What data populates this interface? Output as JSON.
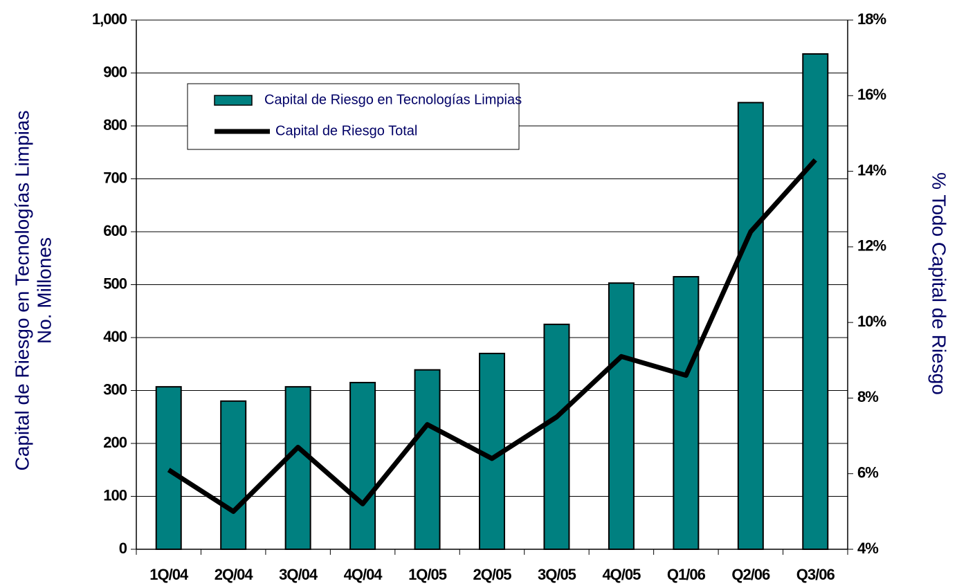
{
  "chart_data": {
    "type": "bar",
    "categories": [
      "1Q/04",
      "2Q/04",
      "3Q/04",
      "4Q/04",
      "1Q/05",
      "2Q/05",
      "3Q/05",
      "4Q/05",
      "Q1/06",
      "Q2/06",
      "Q3/06"
    ],
    "series": [
      {
        "name": "Capital de Riesgo en Tecnologías Limpias",
        "type": "bar",
        "color": "#008080",
        "values": [
          307,
          280,
          307,
          315,
          339,
          370,
          425,
          503,
          515,
          844,
          936
        ]
      },
      {
        "name": "Capital de Riesgo Total",
        "type": "line",
        "axis": "y2",
        "color": "#000000",
        "values": [
          6.1,
          5.0,
          6.7,
          5.2,
          7.3,
          6.4,
          7.5,
          9.1,
          8.6,
          12.4,
          14.3
        ]
      }
    ],
    "ylabel": [
      "Capital de Riesgo en Tecnologías Limpias",
      "No. Millones"
    ],
    "y2label": "% Todo Capital de Riesgo",
    "ylim": [
      0,
      1000
    ],
    "yticks": [
      0,
      100,
      200,
      300,
      400,
      500,
      600,
      700,
      800,
      900,
      {
        "value": 1000,
        "label": "1,000"
      }
    ],
    "y2lim": [
      4,
      18
    ],
    "y2ticks": [
      {
        "value": 4,
        "label": "4%"
      },
      {
        "value": 6,
        "label": "6%"
      },
      {
        "value": 8,
        "label": "8%"
      },
      {
        "value": 10,
        "label": "10%"
      },
      {
        "value": 12,
        "label": "12%"
      },
      {
        "value": 14,
        "label": "14%"
      },
      {
        "value": 16,
        "label": "16%"
      },
      {
        "value": 18,
        "label": "18%"
      }
    ],
    "grid": true
  }
}
